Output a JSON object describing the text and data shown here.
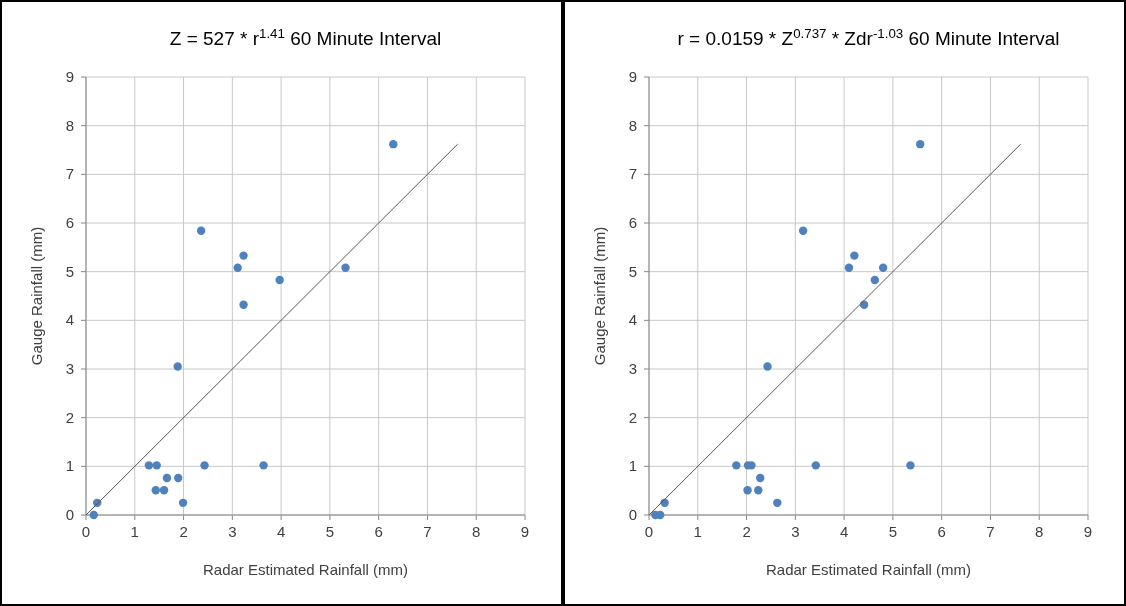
{
  "chart_data": [
    {
      "type": "scatter",
      "title": "Z = 527 * r$^{1.41}$  60 Minute Interval",
      "xlabel": "Radar Estimated Rainfall (mm)",
      "ylabel": "Gauge Rainfall (mm)",
      "xlim": [
        0,
        9
      ],
      "ylim": [
        0,
        9
      ],
      "xticks": [
        0,
        1,
        2,
        3,
        4,
        5,
        6,
        7,
        8,
        9
      ],
      "yticks": [
        0,
        1,
        2,
        3,
        4,
        5,
        6,
        7,
        8,
        9
      ],
      "grid": true,
      "series": [
        {
          "marker": "circle",
          "color": "#4f81bd",
          "x": [
            6.3,
            2.36,
            3.23,
            3.11,
            5.32,
            3.97,
            3.23,
            1.88,
            1.29,
            1.45,
            2.43,
            3.64,
            1.66,
            1.89,
            1.43,
            1.6,
            1.99,
            0.23,
            0.16
          ],
          "values": [
            7.62,
            5.84,
            5.33,
            5.08,
            5.08,
            4.83,
            4.32,
            3.05,
            1.02,
            1.02,
            1.02,
            1.02,
            0.76,
            0.76,
            0.51,
            0.51,
            0.25,
            0.25,
            0
          ]
        },
        {
          "type": "line",
          "color": "#595959",
          "x": [
            0,
            7.62
          ],
          "values": [
            0,
            7.62
          ]
        }
      ]
    },
    {
      "type": "scatter",
      "title": "r = 0.0159 * Z$^{0.737}$ * Zdr$^{-1.03}$  60 Minute Interval",
      "xlabel": "Radar Estimated Rainfall (mm)",
      "ylabel": "Gauge Rainfall (mm)",
      "xlim": [
        0,
        9
      ],
      "ylim": [
        0,
        9
      ],
      "xticks": [
        0,
        1,
        2,
        3,
        4,
        5,
        6,
        7,
        8,
        9
      ],
      "yticks": [
        0,
        1,
        2,
        3,
        4,
        5,
        6,
        7,
        8,
        9
      ],
      "grid": true,
      "series": [
        {
          "marker": "circle",
          "color": "#4f81bd",
          "x": [
            5.56,
            3.16,
            4.21,
            4.1,
            4.8,
            4.63,
            4.41,
            2.43,
            1.79,
            2.03,
            2.1,
            3.42,
            5.36,
            2.28,
            2.02,
            2.24,
            2.63,
            0.32,
            0.13,
            0.23
          ],
          "values": [
            7.62,
            5.84,
            5.33,
            5.08,
            5.08,
            4.83,
            4.32,
            3.05,
            1.02,
            1.02,
            1.02,
            1.02,
            1.02,
            0.76,
            0.51,
            0.51,
            0.25,
            0.25,
            0,
            0
          ]
        },
        {
          "type": "line",
          "color": "#595959",
          "x": [
            0,
            7.62
          ],
          "values": [
            0,
            7.62
          ]
        }
      ]
    }
  ]
}
